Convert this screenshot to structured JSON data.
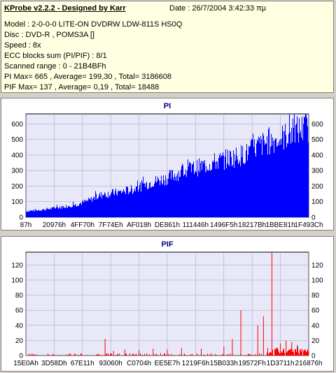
{
  "info": {
    "title": "KProbe v2.2.2 - Designed by Karr",
    "date": "Date : 26/7/2004 3:42:33 πμ",
    "lines": [
      "Model : 2-0-0-0 LITE-ON DVDRW LDW-811S   HS0Q",
      "Disc : DVD-R , POMS3A []",
      "Speed : 8x",
      "ECC blocks sum (PI/PIF) : 8/1",
      "Scanned range : 0 - 21B4BFh",
      "PI Max= 665 , Average= 199,30 , Total= 3186608",
      "PIF Max= 137 , Average= 0,19 , Total= 18488"
    ]
  },
  "colors": {
    "panel_bg": "#ffffe1",
    "plot_bg": "#e8e8f8",
    "pi_series": "#0000ff",
    "pif_series": "#ff0000",
    "title_color": "#000080"
  },
  "chart_data": [
    {
      "type": "bar",
      "title": "PI",
      "ylim": [
        0,
        665
      ],
      "yticks": [
        0,
        100,
        200,
        300,
        400,
        500,
        600
      ],
      "xtick_labels": [
        "87h",
        "20976h",
        "4FF70h",
        "7F74Eh",
        "AF018h",
        "DE861h",
        "111446h",
        "1496F5h",
        "18217Bh",
        "1BBE81h",
        "1F493Ch"
      ],
      "series": [
        {
          "profile": [
            [
              0.0,
              40
            ],
            [
              0.06,
              50
            ],
            [
              0.12,
              65
            ],
            [
              0.18,
              85
            ],
            [
              0.22,
              110
            ],
            [
              0.27,
              150
            ],
            [
              0.33,
              165
            ],
            [
              0.38,
              185
            ],
            [
              0.44,
              230
            ],
            [
              0.5,
              260
            ],
            [
              0.55,
              300
            ],
            [
              0.61,
              330
            ],
            [
              0.66,
              360
            ],
            [
              0.72,
              390
            ],
            [
              0.78,
              420
            ],
            [
              0.82,
              470
            ],
            [
              0.86,
              500
            ],
            [
              0.9,
              520
            ],
            [
              0.94,
              560
            ],
            [
              1.0,
              600
            ]
          ]
        }
      ],
      "grid": true
    },
    {
      "type": "bar",
      "title": "PIF",
      "ylim": [
        0,
        137
      ],
      "yticks": [
        0,
        20,
        40,
        60,
        80,
        100,
        120
      ],
      "xtick_labels": [
        "15E0Ah",
        "3D58Dh",
        "67E11h",
        "93060h",
        "C0704h",
        "EE5E7h",
        "1219F6h",
        "15B033h",
        "19572Fh",
        "1D3711h",
        "216876h"
      ],
      "series": [
        {
          "spikes": [
            [
              0.28,
              22
            ],
            [
              0.31,
              6
            ],
            [
              0.35,
              8
            ],
            [
              0.4,
              7
            ],
            [
              0.45,
              9
            ],
            [
              0.5,
              8
            ],
            [
              0.55,
              10
            ],
            [
              0.62,
              9
            ],
            [
              0.7,
              12
            ],
            [
              0.73,
              22
            ],
            [
              0.76,
              60
            ],
            [
              0.82,
              40
            ],
            [
              0.84,
              52
            ],
            [
              0.87,
              137
            ],
            [
              0.9,
              16
            ],
            [
              0.92,
              20
            ],
            [
              0.94,
              18
            ],
            [
              0.96,
              14
            ]
          ]
        }
      ],
      "grid": true
    }
  ]
}
